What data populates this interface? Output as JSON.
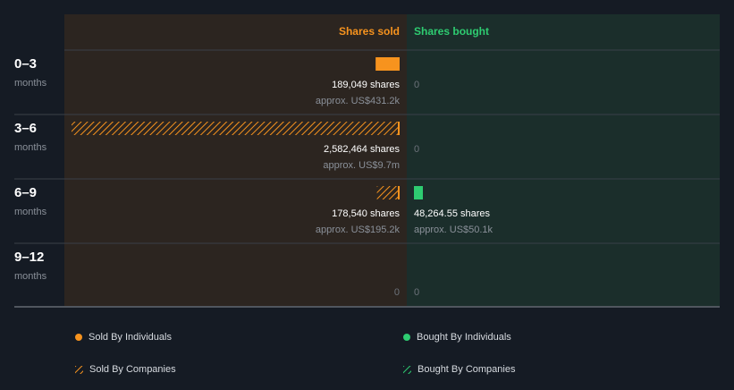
{
  "colors": {
    "background": "#151b24",
    "sold_panel": "#2c2520",
    "bought_panel": "#1b2e2b",
    "sold_accent": "#f7931e",
    "bought_accent": "#2ecc71",
    "divider": "#3a4048",
    "muted_text": "#8a9099"
  },
  "chart_data": {
    "type": "bar",
    "orientation": "horizontal-diverging",
    "columns": {
      "sold": "Shares sold",
      "bought": "Shares bought"
    },
    "categories": [
      {
        "label": "0–3",
        "unit": "months"
      },
      {
        "label": "3–6",
        "unit": "months"
      },
      {
        "label": "6–9",
        "unit": "months"
      },
      {
        "label": "9–12",
        "unit": "months"
      }
    ],
    "series": [
      {
        "name": "Sold By Individuals",
        "side": "sold",
        "pattern": "solid",
        "values": [
          189049,
          0,
          0,
          0
        ]
      },
      {
        "name": "Sold By Companies",
        "side": "sold",
        "pattern": "hatched",
        "values": [
          0,
          2582464,
          178540,
          0
        ]
      },
      {
        "name": "Bought By Individuals",
        "side": "bought",
        "pattern": "solid",
        "values": [
          0,
          0,
          48264.55,
          0
        ]
      },
      {
        "name": "Bought By Companies",
        "side": "bought",
        "pattern": "hatched",
        "values": [
          0,
          0,
          0,
          0
        ]
      }
    ],
    "labels": {
      "sold": [
        {
          "shares": "189,049 shares",
          "approx": "approx. US$431.2k"
        },
        {
          "shares": "2,582,464 shares",
          "approx": "approx. US$9.7m"
        },
        {
          "shares": "178,540 shares",
          "approx": "approx. US$195.2k"
        },
        {
          "zero": "0"
        }
      ],
      "bought": [
        {
          "zero": "0"
        },
        {
          "zero": "0"
        },
        {
          "shares": "48,264.55 shares",
          "approx": "approx. US$50.1k"
        },
        {
          "zero": "0"
        }
      ]
    },
    "legend_placement": "bottom",
    "grid": false
  }
}
